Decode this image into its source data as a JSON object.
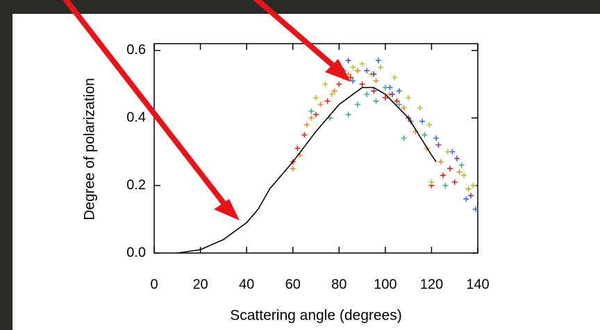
{
  "chart_data": {
    "type": "scatter",
    "xlabel": "Scattering angle (degrees)",
    "ylabel": "Degree of polarization",
    "xlim": [
      0,
      140
    ],
    "ylim": [
      0,
      0.62
    ],
    "xticks": [
      0,
      20,
      40,
      60,
      80,
      100,
      120,
      140
    ],
    "yticks": [
      {
        "value": 0,
        "label": "0.0"
      },
      0.2,
      0.4,
      0.6
    ],
    "line": {
      "color": "#000000",
      "x": [
        10,
        20,
        30,
        40,
        45,
        50,
        60,
        70,
        80,
        90,
        95,
        100,
        110,
        120,
        122
      ],
      "values": [
        0,
        0.01,
        0.04,
        0.09,
        0.13,
        0.19,
        0.27,
        0.36,
        0.44,
        0.49,
        0.49,
        0.47,
        0.4,
        0.29,
        0.27
      ]
    },
    "series": [
      {
        "color": "#d7261e",
        "x": [
          60,
          62,
          65,
          70,
          75,
          80,
          85,
          90,
          95,
          100,
          105,
          110,
          120,
          125,
          130,
          128
        ],
        "values": [
          0.27,
          0.31,
          0.35,
          0.41,
          0.45,
          0.5,
          0.52,
          0.5,
          0.48,
          0.46,
          0.45,
          0.4,
          0.2,
          0.23,
          0.21,
          0.25
        ]
      },
      {
        "color": "#f08a24",
        "x": [
          60,
          63,
          66,
          68,
          72,
          78,
          84,
          88,
          96,
          102,
          108,
          113,
          118,
          124,
          132,
          136
        ],
        "values": [
          0.25,
          0.29,
          0.38,
          0.4,
          0.44,
          0.48,
          0.53,
          0.54,
          0.51,
          0.47,
          0.43,
          0.36,
          0.31,
          0.27,
          0.24,
          0.19
        ]
      },
      {
        "color": "#b5c43c",
        "x": [
          70,
          74,
          77,
          82,
          86,
          90,
          94,
          98,
          104,
          110,
          115,
          119,
          120,
          127,
          134,
          138
        ],
        "values": [
          0.46,
          0.5,
          0.47,
          0.52,
          0.55,
          0.56,
          0.53,
          0.55,
          0.52,
          0.46,
          0.43,
          0.38,
          0.21,
          0.3,
          0.23,
          0.2
        ]
      },
      {
        "color": "#3fae8c",
        "x": [
          68,
          76,
          84,
          88,
          92,
          96,
          100,
          106,
          108,
          117,
          126,
          133
        ],
        "values": [
          0.42,
          0.4,
          0.41,
          0.44,
          0.47,
          0.45,
          0.49,
          0.44,
          0.34,
          0.35,
          0.2,
          0.26
        ]
      },
      {
        "color": "#3a6fd0",
        "x": [
          82,
          86,
          92,
          97,
          102,
          106,
          111,
          116,
          122,
          129,
          135,
          139
        ],
        "values": [
          0.54,
          0.51,
          0.54,
          0.57,
          0.49,
          0.48,
          0.39,
          0.39,
          0.34,
          0.3,
          0.16,
          0.13
        ]
      },
      {
        "color": "#6a3fa8",
        "x": [
          84,
          95,
          103,
          123,
          131,
          137
        ],
        "values": [
          0.57,
          0.53,
          0.47,
          0.32,
          0.28,
          0.17
        ]
      }
    ]
  }
}
